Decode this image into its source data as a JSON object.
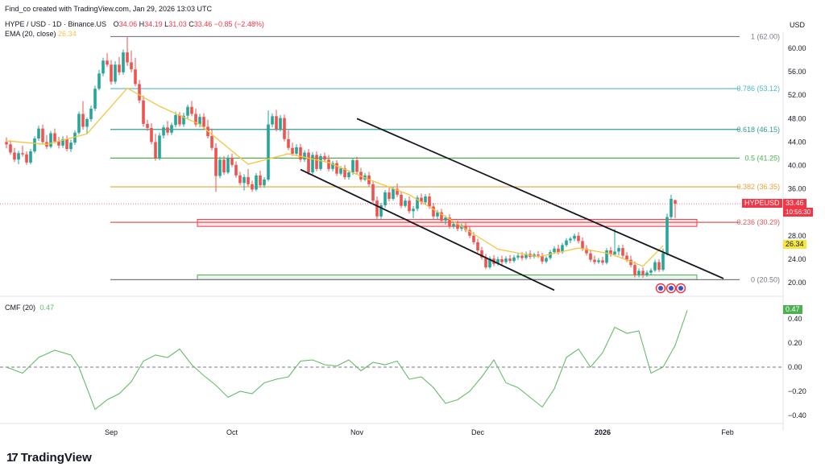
{
  "header": {
    "created_by": "Find_co created with TradingView.com, Jan 29, 2026 13:03 UTC",
    "symbol": "HYPE / USD · 1D · Binance.US",
    "ohlc": {
      "o_label": "O",
      "o": "34.06",
      "h_label": "H",
      "h": "34.19",
      "l_label": "L",
      "l": "31.03",
      "c_label": "C",
      "c": "33.46",
      "chg": "−0.85 (−2.48%)"
    },
    "ema_label": "EMA (20, close)",
    "ema_value": "26.34",
    "currency": "USD"
  },
  "cmf": {
    "label": "CMF (20)",
    "value": "0.47",
    "tag": "0.47"
  },
  "price_tag": {
    "symbol": "HYPEUSD",
    "price": "33.46",
    "countdown": "10:56:30"
  },
  "ema_tag": "26.34",
  "branding": "TradingView",
  "colors": {
    "up": "#26a69a",
    "down": "#ef5350",
    "ema": "#f5c542",
    "cmf": "#66bb6a",
    "price_red": "#f23645"
  },
  "chart_data": {
    "type": "candlestick",
    "title": "HYPE / USD · 1D · Binance.US",
    "y_axis": {
      "ticks": [
        20,
        24,
        28,
        32,
        36,
        40,
        44,
        48,
        52,
        56,
        60
      ],
      "labels": [
        "20.00",
        "24.00",
        "28.00",
        "32.00",
        "36.00",
        "40.00",
        "44.00",
        "48.00",
        "52.00",
        "56.00",
        "60.00"
      ],
      "range": [
        18.5,
        63.5
      ],
      "scale": "linear",
      "currency": "USD"
    },
    "x_axis": {
      "ticks": [
        {
          "label": "Sep",
          "day": 26,
          "bold": false
        },
        {
          "label": "Oct",
          "day": 56,
          "bold": false
        },
        {
          "label": "Nov",
          "day": 87,
          "bold": false
        },
        {
          "label": "Dec",
          "day": 117,
          "bold": false
        },
        {
          "label": "2026",
          "day": 148,
          "bold": true
        },
        {
          "label": "Feb",
          "day": 179,
          "bold": false
        }
      ]
    },
    "candles": [
      [
        44.0,
        44.8,
        42.9,
        43.6
      ],
      [
        43.6,
        44.3,
        41.8,
        42.2
      ],
      [
        42.2,
        43.0,
        40.6,
        41.0
      ],
      [
        41.0,
        42.5,
        40.2,
        42.1
      ],
      [
        42.1,
        43.4,
        41.5,
        41.9
      ],
      [
        41.9,
        42.4,
        40.1,
        40.5
      ],
      [
        40.5,
        42.8,
        40.2,
        42.4
      ],
      [
        42.4,
        45.0,
        42.1,
        44.6
      ],
      [
        44.6,
        46.8,
        44.2,
        46.3
      ],
      [
        46.3,
        47.0,
        43.6,
        44.0
      ],
      [
        44.0,
        45.2,
        42.8,
        43.2
      ],
      [
        43.2,
        45.9,
        42.9,
        45.5
      ],
      [
        45.5,
        46.3,
        43.8,
        44.1
      ],
      [
        44.1,
        44.9,
        42.9,
        43.4
      ],
      [
        43.4,
        45.0,
        43.0,
        44.5
      ],
      [
        44.5,
        45.1,
        42.4,
        42.8
      ],
      [
        42.8,
        44.4,
        42.3,
        43.9
      ],
      [
        43.9,
        46.0,
        43.5,
        45.6
      ],
      [
        45.6,
        49.2,
        45.3,
        48.8
      ],
      [
        48.8,
        51.0,
        46.1,
        46.6
      ],
      [
        46.6,
        48.2,
        45.3,
        47.9
      ],
      [
        47.9,
        50.2,
        47.5,
        49.7
      ],
      [
        49.7,
        53.6,
        49.3,
        53.1
      ],
      [
        53.1,
        56.3,
        52.8,
        55.7
      ],
      [
        55.7,
        58.4,
        55.2,
        57.9
      ],
      [
        57.9,
        59.2,
        56.8,
        57.2
      ],
      [
        57.2,
        58.0,
        53.8,
        54.3
      ],
      [
        54.3,
        57.8,
        53.9,
        57.2
      ],
      [
        57.2,
        58.5,
        55.4,
        55.9
      ],
      [
        55.9,
        59.8,
        55.5,
        59.3
      ],
      [
        59.3,
        61.9,
        57.0,
        57.6
      ],
      [
        57.6,
        59.6,
        55.9,
        56.4
      ],
      [
        56.4,
        58.4,
        53.5,
        53.9
      ],
      [
        53.9,
        54.6,
        50.6,
        51.1
      ],
      [
        51.1,
        51.9,
        46.6,
        47.1
      ],
      [
        47.1,
        47.8,
        45.9,
        46.4
      ],
      [
        46.4,
        47.2,
        43.6,
        44.0
      ],
      [
        44.0,
        45.4,
        40.8,
        41.2
      ],
      [
        41.2,
        45.6,
        40.9,
        45.1
      ],
      [
        45.1,
        46.9,
        44.6,
        46.5
      ],
      [
        46.5,
        47.6,
        45.1,
        45.6
      ],
      [
        45.6,
        47.3,
        45.2,
        46.9
      ],
      [
        46.9,
        49.2,
        46.5,
        48.6
      ],
      [
        48.6,
        49.1,
        46.6,
        47.0
      ],
      [
        47.0,
        49.0,
        46.6,
        48.5
      ],
      [
        48.5,
        50.4,
        48.0,
        50.0
      ],
      [
        50.0,
        51.0,
        48.4,
        48.8
      ],
      [
        48.8,
        49.7,
        46.6,
        47.0
      ],
      [
        47.0,
        48.8,
        46.5,
        48.3
      ],
      [
        48.3,
        48.9,
        46.2,
        46.6
      ],
      [
        46.6,
        47.8,
        44.6,
        45.0
      ],
      [
        45.0,
        46.3,
        42.6,
        43.0
      ],
      [
        43.0,
        43.8,
        35.5,
        38.2
      ],
      [
        38.2,
        41.5,
        37.8,
        41.0
      ],
      [
        41.0,
        41.6,
        38.4,
        38.8
      ],
      [
        38.8,
        41.8,
        38.5,
        41.3
      ],
      [
        41.3,
        42.0,
        39.7,
        40.1
      ],
      [
        40.1,
        40.7,
        37.9,
        38.3
      ],
      [
        38.3,
        38.9,
        36.6,
        37.0
      ],
      [
        37.0,
        38.5,
        35.7,
        38.0
      ],
      [
        38.0,
        39.4,
        36.4,
        36.8
      ],
      [
        36.8,
        37.4,
        35.5,
        35.9
      ],
      [
        35.9,
        38.7,
        35.6,
        38.3
      ],
      [
        38.3,
        39.1,
        36.2,
        36.6
      ],
      [
        36.6,
        38.0,
        36.2,
        37.6
      ],
      [
        37.6,
        49.4,
        37.3,
        47.0
      ],
      [
        47.0,
        48.9,
        46.5,
        48.4
      ],
      [
        48.4,
        49.5,
        45.8,
        46.2
      ],
      [
        46.2,
        48.6,
        45.8,
        48.1
      ],
      [
        48.1,
        48.7,
        44.1,
        44.5
      ],
      [
        44.5,
        46.0,
        42.6,
        43.0
      ],
      [
        43.0,
        43.9,
        41.6,
        42.0
      ],
      [
        42.0,
        43.6,
        41.6,
        43.1
      ],
      [
        43.1,
        43.7,
        40.6,
        41.0
      ],
      [
        41.0,
        42.6,
        40.6,
        42.2
      ],
      [
        42.2,
        42.8,
        38.4,
        38.8
      ],
      [
        38.8,
        42.3,
        38.5,
        41.8
      ],
      [
        41.8,
        42.4,
        39.0,
        39.4
      ],
      [
        39.4,
        42.0,
        39.1,
        41.6
      ],
      [
        41.6,
        42.2,
        40.6,
        41.0
      ],
      [
        41.0,
        41.8,
        39.0,
        39.4
      ],
      [
        39.4,
        40.8,
        39.0,
        40.4
      ],
      [
        40.4,
        40.9,
        38.2,
        38.6
      ],
      [
        38.6,
        39.9,
        38.3,
        39.5
      ],
      [
        39.5,
        40.1,
        37.6,
        38.0
      ],
      [
        38.0,
        39.2,
        37.6,
        38.8
      ],
      [
        38.8,
        41.3,
        38.4,
        40.9
      ],
      [
        40.9,
        41.5,
        38.5,
        38.9
      ],
      [
        38.9,
        39.6,
        37.2,
        37.6
      ],
      [
        37.6,
        38.7,
        37.3,
        38.3
      ],
      [
        38.3,
        38.9,
        36.4,
        36.8
      ],
      [
        36.8,
        37.4,
        33.6,
        34.0
      ],
      [
        34.0,
        34.7,
        30.9,
        31.3
      ],
      [
        31.3,
        33.6,
        30.9,
        33.2
      ],
      [
        33.2,
        35.8,
        32.8,
        35.4
      ],
      [
        35.4,
        36.2,
        33.9,
        34.3
      ],
      [
        34.3,
        36.4,
        34.0,
        36.0
      ],
      [
        36.0,
        36.9,
        34.6,
        35.0
      ],
      [
        35.0,
        35.6,
        32.7,
        33.1
      ],
      [
        33.1,
        34.4,
        32.8,
        34.0
      ],
      [
        34.0,
        34.7,
        31.8,
        32.2
      ],
      [
        32.2,
        33.1,
        31.0,
        32.6
      ],
      [
        32.6,
        34.9,
        32.2,
        34.5
      ],
      [
        34.5,
        35.2,
        33.3,
        33.7
      ],
      [
        33.7,
        35.1,
        33.3,
        34.7
      ],
      [
        34.7,
        35.3,
        32.6,
        33.0
      ],
      [
        33.0,
        33.6,
        30.9,
        31.3
      ],
      [
        31.3,
        32.4,
        30.8,
        32.0
      ],
      [
        32.0,
        32.6,
        30.2,
        30.6
      ],
      [
        30.6,
        31.5,
        29.9,
        31.1
      ],
      [
        31.1,
        31.7,
        29.2,
        29.6
      ],
      [
        29.6,
        30.4,
        29.2,
        30.0
      ],
      [
        30.0,
        30.6,
        28.8,
        29.2
      ],
      [
        29.2,
        30.1,
        28.8,
        29.7
      ],
      [
        29.7,
        30.3,
        28.6,
        29.0
      ],
      [
        29.0,
        29.6,
        27.6,
        28.0
      ],
      [
        28.0,
        28.6,
        26.5,
        26.9
      ],
      [
        26.9,
        27.5,
        25.1,
        25.5
      ],
      [
        25.5,
        26.1,
        23.9,
        24.3
      ],
      [
        24.3,
        24.9,
        22.3,
        22.6
      ],
      [
        22.6,
        24.5,
        22.3,
        24.1
      ],
      [
        24.1,
        24.7,
        22.8,
        23.2
      ],
      [
        23.2,
        24.4,
        22.9,
        24.0
      ],
      [
        24.0,
        24.6,
        23.1,
        23.5
      ],
      [
        23.5,
        24.5,
        23.2,
        24.1
      ],
      [
        24.1,
        24.7,
        23.3,
        23.7
      ],
      [
        23.7,
        24.7,
        23.4,
        24.3
      ],
      [
        24.3,
        25.0,
        23.9,
        24.6
      ],
      [
        24.6,
        25.2,
        23.8,
        24.2
      ],
      [
        24.2,
        25.3,
        23.9,
        24.9
      ],
      [
        24.9,
        25.5,
        24.0,
        24.4
      ],
      [
        24.4,
        25.1,
        24.1,
        24.8
      ],
      [
        24.8,
        25.4,
        24.2,
        24.6
      ],
      [
        24.6,
        25.1,
        23.2,
        23.6
      ],
      [
        23.6,
        24.5,
        23.3,
        24.2
      ],
      [
        24.2,
        25.6,
        23.9,
        25.2
      ],
      [
        25.2,
        26.2,
        24.9,
        25.8
      ],
      [
        25.8,
        26.5,
        24.8,
        25.2
      ],
      [
        25.2,
        26.8,
        24.9,
        26.4
      ],
      [
        26.4,
        27.6,
        26.1,
        27.2
      ],
      [
        27.2,
        27.8,
        26.7,
        27.5
      ],
      [
        27.5,
        28.4,
        27.1,
        28.0
      ],
      [
        28.0,
        28.6,
        26.7,
        27.1
      ],
      [
        27.1,
        27.7,
        25.4,
        25.8
      ],
      [
        25.8,
        26.4,
        24.6,
        25.0
      ],
      [
        25.0,
        25.6,
        23.5,
        23.9
      ],
      [
        23.9,
        24.6,
        23.1,
        23.5
      ],
      [
        23.5,
        24.2,
        23.2,
        23.8
      ],
      [
        23.8,
        24.4,
        23.0,
        23.4
      ],
      [
        23.4,
        25.9,
        23.1,
        25.5
      ],
      [
        25.5,
        26.1,
        24.4,
        24.8
      ],
      [
        24.8,
        29.2,
        24.5,
        25.3
      ],
      [
        25.3,
        26.4,
        24.6,
        25.9
      ],
      [
        25.9,
        26.5,
        24.2,
        24.6
      ],
      [
        24.6,
        25.2,
        23.5,
        23.9
      ],
      [
        23.9,
        24.6,
        22.6,
        23.0
      ],
      [
        23.0,
        23.6,
        20.9,
        21.3
      ],
      [
        21.3,
        22.4,
        20.9,
        22.0
      ],
      [
        22.0,
        22.6,
        20.8,
        21.3
      ],
      [
        21.3,
        22.1,
        21.0,
        21.7
      ],
      [
        21.7,
        22.5,
        21.3,
        22.1
      ],
      [
        22.1,
        23.9,
        21.8,
        23.5
      ],
      [
        23.5,
        24.0,
        21.8,
        22.2
      ],
      [
        22.2,
        25.8,
        21.9,
        25.0
      ],
      [
        25.0,
        31.8,
        24.6,
        31.2
      ],
      [
        31.2,
        35.0,
        30.9,
        34.3
      ],
      [
        34.06,
        34.19,
        31.03,
        33.46
      ]
    ],
    "ema20": [
      [
        0,
        44.2
      ],
      [
        10,
        43.6
      ],
      [
        20,
        45.4
      ],
      [
        30,
        53.2
      ],
      [
        38,
        50.1
      ],
      [
        48,
        47.0
      ],
      [
        60,
        40.2
      ],
      [
        70,
        42.0
      ],
      [
        80,
        40.5
      ],
      [
        90,
        37.6
      ],
      [
        100,
        35.0
      ],
      [
        112,
        30.0
      ],
      [
        122,
        25.7
      ],
      [
        132,
        24.4
      ],
      [
        142,
        25.9
      ],
      [
        150,
        24.9
      ],
      [
        158,
        22.8
      ],
      [
        163,
        26.3
      ]
    ],
    "fib_levels": [
      {
        "label": "1 (62.00)",
        "price": 62.0,
        "color": "#787b86"
      },
      {
        "label": "0.786 (53.12)",
        "price": 53.12,
        "color": "#4fb7c9"
      },
      {
        "label": "0.618 (46.15)",
        "price": 46.15,
        "color": "#2f9e8f"
      },
      {
        "label": "0.5 (41.25)",
        "price": 41.25,
        "color": "#4caf50"
      },
      {
        "label": "0.382 (36.35)",
        "price": 36.35,
        "color": "#e6a23c"
      },
      {
        "label": "0.236 (30.29)",
        "price": 30.29,
        "color": "#e05a5a"
      },
      {
        "label": "0 (20.50)",
        "price": 20.5,
        "color": "#787b86"
      }
    ],
    "zones": [
      {
        "name": "resistance",
        "from": 29.6,
        "to": 30.8,
        "color": "#f23645"
      },
      {
        "name": "support",
        "from": 20.5,
        "to": 21.3,
        "color": "#4caf50"
      }
    ],
    "channel": [
      {
        "from": [
          87,
          48.0
        ],
        "to": [
          178,
          20.7
        ]
      },
      {
        "from": [
          73,
          39.3
        ],
        "to": [
          136,
          18.7
        ]
      }
    ],
    "cmf": {
      "name": "CMF (20)",
      "y_axis": {
        "ticks": [
          0.4,
          0.2,
          0.0,
          -0.2,
          -0.4
        ],
        "labels": [
          "0.40",
          "0.20",
          "0.00",
          "−0.20",
          "−0.40"
        ],
        "range": [
          -0.5,
          0.52
        ]
      },
      "points": [
        [
          0,
          0.0
        ],
        [
          4,
          -0.05
        ],
        [
          8,
          0.08
        ],
        [
          12,
          0.14
        ],
        [
          16,
          0.1
        ],
        [
          18,
          0.0
        ],
        [
          22,
          -0.35
        ],
        [
          25,
          -0.27
        ],
        [
          28,
          -0.22
        ],
        [
          31,
          -0.12
        ],
        [
          34,
          0.05
        ],
        [
          37,
          0.1
        ],
        [
          40,
          0.08
        ],
        [
          43,
          0.15
        ],
        [
          46,
          0.02
        ],
        [
          49,
          -0.07
        ],
        [
          52,
          -0.15
        ],
        [
          55,
          -0.25
        ],
        [
          58,
          -0.2
        ],
        [
          61,
          -0.22
        ],
        [
          64,
          -0.13
        ],
        [
          67,
          -0.1
        ],
        [
          70,
          -0.08
        ],
        [
          73,
          0.05
        ],
        [
          76,
          0.06
        ],
        [
          79,
          0.02
        ],
        [
          82,
          0.01
        ],
        [
          85,
          0.06
        ],
        [
          88,
          -0.03
        ],
        [
          91,
          0.04
        ],
        [
          94,
          0.02
        ],
        [
          97,
          0.05
        ],
        [
          100,
          -0.1
        ],
        [
          103,
          -0.08
        ],
        [
          106,
          -0.17
        ],
        [
          109,
          -0.3
        ],
        [
          112,
          -0.27
        ],
        [
          115,
          -0.2
        ],
        [
          118,
          -0.08
        ],
        [
          121,
          0.06
        ],
        [
          124,
          -0.13
        ],
        [
          127,
          -0.17
        ],
        [
          130,
          -0.25
        ],
        [
          133,
          -0.33
        ],
        [
          136,
          -0.18
        ],
        [
          139,
          0.08
        ],
        [
          142,
          0.15
        ],
        [
          145,
          0.0
        ],
        [
          148,
          0.12
        ],
        [
          151,
          0.33
        ],
        [
          154,
          0.28
        ],
        [
          157,
          0.3
        ],
        [
          160,
          -0.05
        ],
        [
          163,
          0.0
        ],
        [
          166,
          0.18
        ],
        [
          169,
          0.47
        ]
      ]
    }
  }
}
